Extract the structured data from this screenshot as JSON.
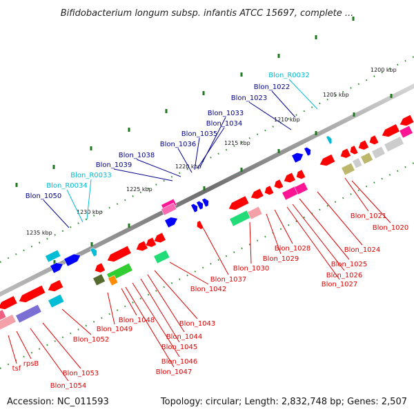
{
  "title": "Bifidobacterium longum subsp. infantis ATCC 15697, complete ...",
  "footer": {
    "accession": "Accession: NC_011593",
    "summary": "Topology: circular; Length: 2,832,748 bp; Genes: 2,507"
  },
  "scale_labels": [
    "1200 kbp",
    "1205 kbp",
    "1210 kbp",
    "1215 kbp",
    "1220 kbp",
    "1225 kbp",
    "1230 kbp",
    "1235 kbp"
  ],
  "upper_genes": [
    {
      "name": "Blon_R0032",
      "kind": "rna"
    },
    {
      "name": "Blon_1022",
      "kind": "protein"
    },
    {
      "name": "Blon_1023",
      "kind": "protein"
    },
    {
      "name": "Blon_1033",
      "kind": "protein"
    },
    {
      "name": "Blon_1034",
      "kind": "protein"
    },
    {
      "name": "Blon_1035",
      "kind": "protein"
    },
    {
      "name": "Blon_1036",
      "kind": "protein"
    },
    {
      "name": "Blon_1038",
      "kind": "protein"
    },
    {
      "name": "Blon_1039",
      "kind": "protein"
    },
    {
      "name": "Blon_R0033",
      "kind": "rna"
    },
    {
      "name": "Blon_R0034",
      "kind": "rna"
    },
    {
      "name": "Blon_1050",
      "kind": "protein"
    }
  ],
  "lower_genes": [
    "Blon_1021",
    "Blon_1020",
    "Blon_1024",
    "Blon_1025",
    "Blon_1026",
    "Blon_1027",
    "Blon_1028",
    "Blon_1029",
    "Blon_1030",
    "Blon_1037",
    "Blon_1042",
    "Blon_1043",
    "Blon_1044",
    "Blon_1045",
    "Blon_1046",
    "Blon_1047",
    "Blon_1048",
    "Blon_1049",
    "Blon_1052",
    "Blon_1053",
    "Blon_1054",
    "tsf",
    "rpsB"
  ],
  "colors": {
    "forward_label": "#00008b",
    "rna_label": "#00bcd4",
    "reverse_label": "#dd0000",
    "backbone": "#7a7a7a",
    "scale_tick": "#1d7a1d"
  }
}
